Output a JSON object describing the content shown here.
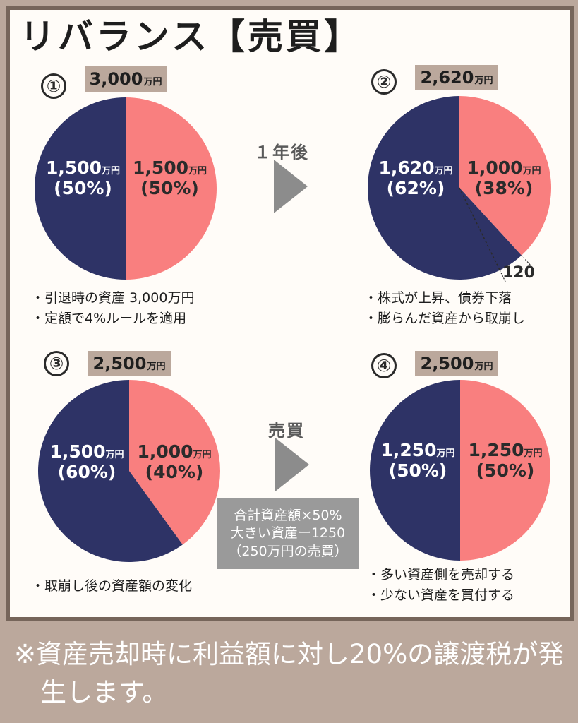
{
  "title": "リバランス【売買】",
  "colors": {
    "navy": "#2e3366",
    "salmon": "#f97f7f",
    "badge": "#bba89c",
    "frame": "#76655a"
  },
  "unit": "万円",
  "panels": [
    {
      "number": "①",
      "total": "3,000",
      "left_slice": {
        "value": "1,500",
        "percent": "(50%)"
      },
      "right_slice": {
        "value": "1,500",
        "percent": "(50%)"
      },
      "notes": [
        "引退時の資産 3,000万円",
        "定額で4%ルールを適用"
      ]
    },
    {
      "number": "②",
      "total": "2,620",
      "left_slice": {
        "value": "1,620",
        "percent": "(62%)"
      },
      "right_slice": {
        "value": "1,000",
        "percent": "(38%)"
      },
      "withdrawal_label": "120",
      "notes": [
        "株式が上昇、債券下落",
        "膨らんだ資産から取崩し"
      ]
    },
    {
      "number": "③",
      "total": "2,500",
      "left_slice": {
        "value": "1,500",
        "percent": "(60%)"
      },
      "right_slice": {
        "value": "1,000",
        "percent": "(40%)"
      },
      "notes": [
        "取崩し後の資産額の変化"
      ]
    },
    {
      "number": "④",
      "total": "2,500",
      "left_slice": {
        "value": "1,250",
        "percent": "(50%)"
      },
      "right_slice": {
        "value": "1,250",
        "percent": "(50%)"
      },
      "notes": [
        "多い資産側を売却する",
        "少ない資産を買付する"
      ]
    }
  ],
  "arrows": [
    {
      "label": "１年後"
    },
    {
      "label": "売買"
    }
  ],
  "calc_box": {
    "lines": [
      "合計資産額×50%",
      "大きい資産ー1250",
      "（250万円の売買）"
    ]
  },
  "footer": "※資産売却時に利益額に対し20%の譲渡税が発生します。"
}
